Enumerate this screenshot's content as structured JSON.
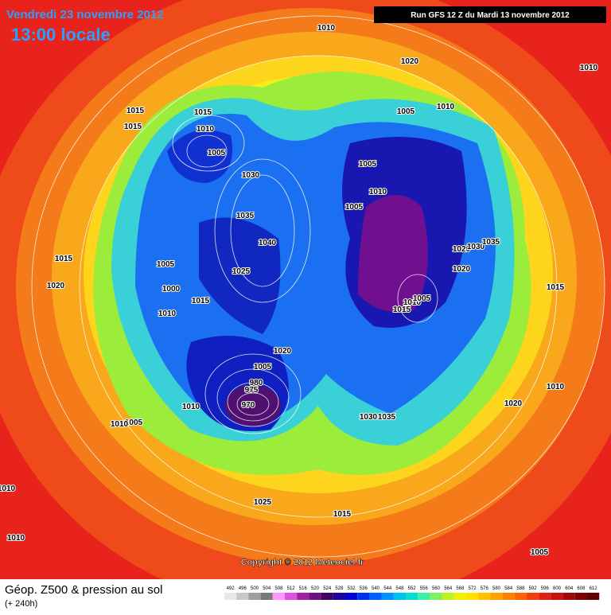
{
  "header": {
    "date": "Vendredi 23 novembre 2012",
    "time": "13:00 locale",
    "run": "Run GFS 12 Z du Mardi 13 novembre 2012"
  },
  "pressure_labels": [
    "1010",
    "1020",
    "1010",
    "1015",
    "1015",
    "1015",
    "1010",
    "1005",
    "1005",
    "1010",
    "1030",
    "1005",
    "1010",
    "1005",
    "1035",
    "1040",
    "1015",
    "1005",
    "1025",
    "1020",
    "1000",
    "1015",
    "1010",
    "1020",
    "1030",
    "1035",
    "1020",
    "1015",
    "1010",
    "1005",
    "1015",
    "1020",
    "1005",
    "970",
    "975",
    "980",
    "1010",
    "1005",
    "1010",
    "1030",
    "1035",
    "1020",
    "1010",
    "1010",
    "1010",
    "1025",
    "1015",
    "1005"
  ],
  "copyright": "Copyright © 2012 Meteociel.fr",
  "footer": {
    "title": "Géop. Z500 & pression au sol",
    "subtitle": "(+ 240h)"
  },
  "colorbar": {
    "values": [
      492,
      496,
      500,
      504,
      508,
      512,
      516,
      520,
      524,
      528,
      532,
      536,
      540,
      544,
      548,
      552,
      556,
      560,
      564,
      568,
      572,
      576,
      580,
      584,
      588,
      592,
      596,
      600,
      604,
      608,
      612
    ],
    "colors": [
      "#e8e8e8",
      "#c8c8c8",
      "#a0a0a0",
      "#787878",
      "#ff96ff",
      "#e050e0",
      "#a020a0",
      "#701080",
      "#400060",
      "#2000a0",
      "#0000d0",
      "#0030f0",
      "#0060ff",
      "#0090ff",
      "#00c0f0",
      "#00e0d0",
      "#40f0a0",
      "#80f060",
      "#c0f020",
      "#f0f000",
      "#ffe000",
      "#ffc000",
      "#ffa000",
      "#ff8000",
      "#ff6000",
      "#f04010",
      "#e02010",
      "#c81010",
      "#a00808",
      "#800000",
      "#600000"
    ]
  }
}
